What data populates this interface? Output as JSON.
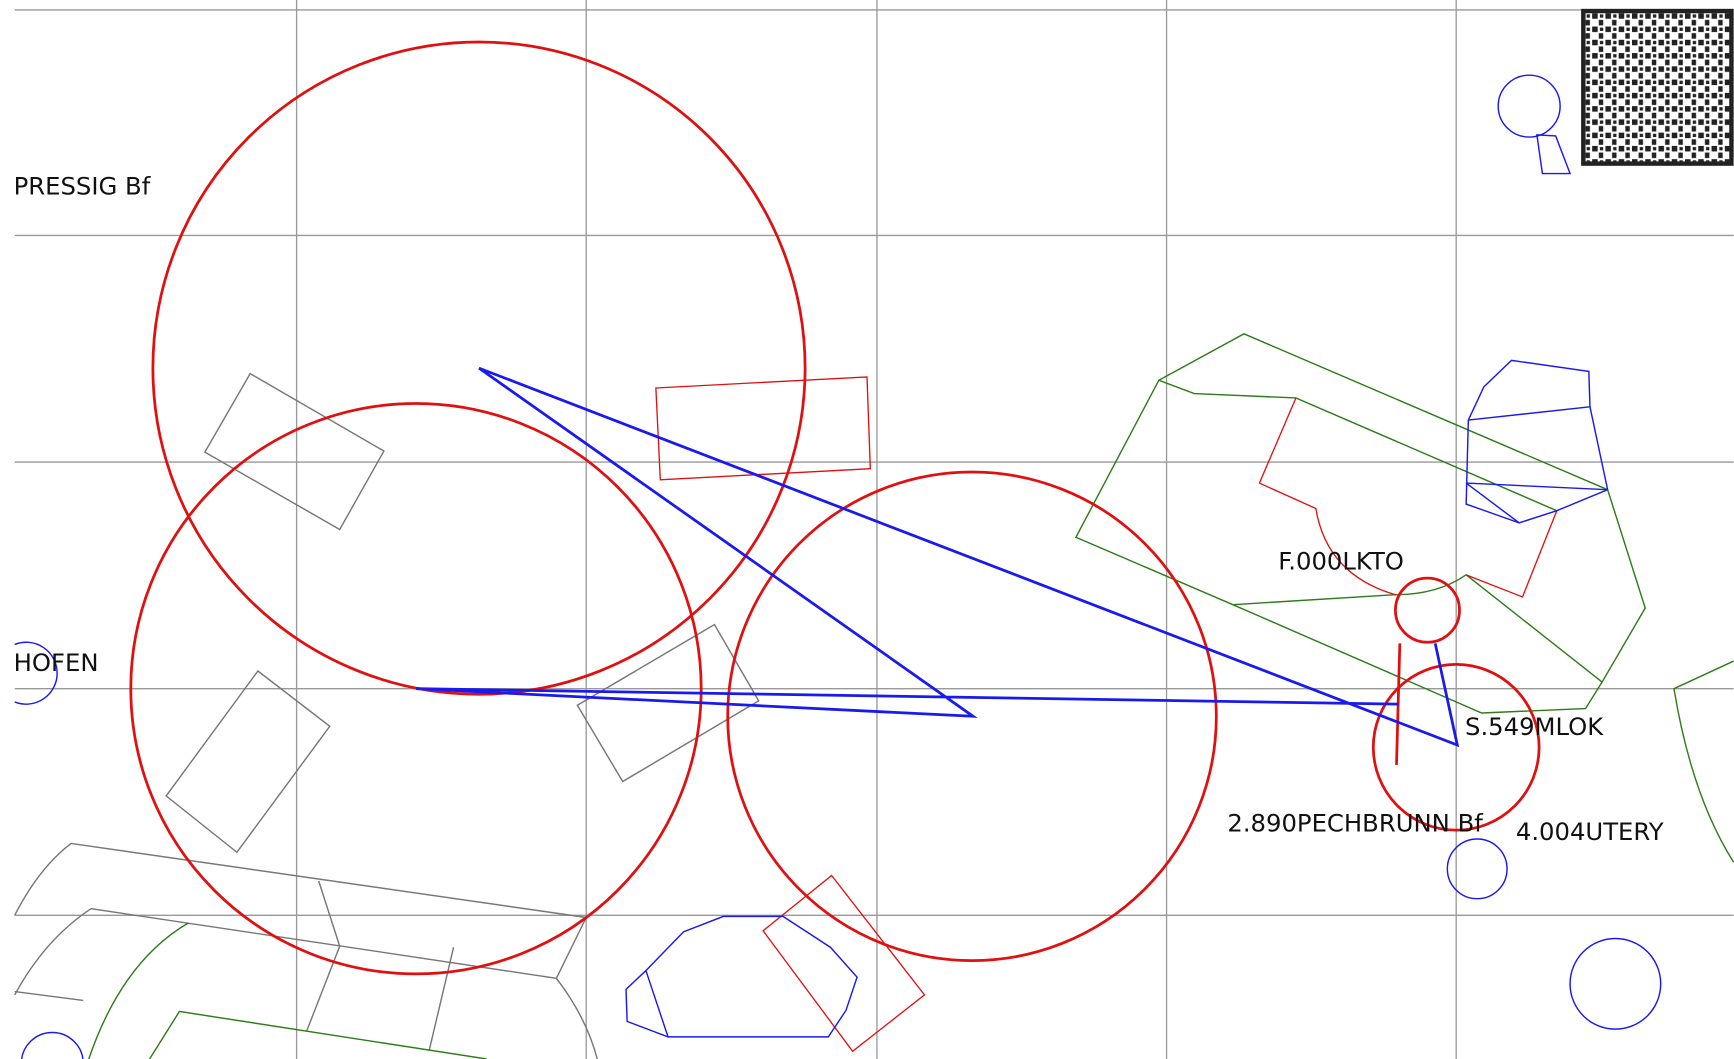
{
  "labels": {
    "pressig": "PRESSIG Bf",
    "hofen": "HOFEN",
    "lkto": "F.000LKTO",
    "mlok": "S.549MLOK",
    "pechbrunn": "2.890PECHBRUNN Bf",
    "utery": "4.004UTERY"
  }
}
